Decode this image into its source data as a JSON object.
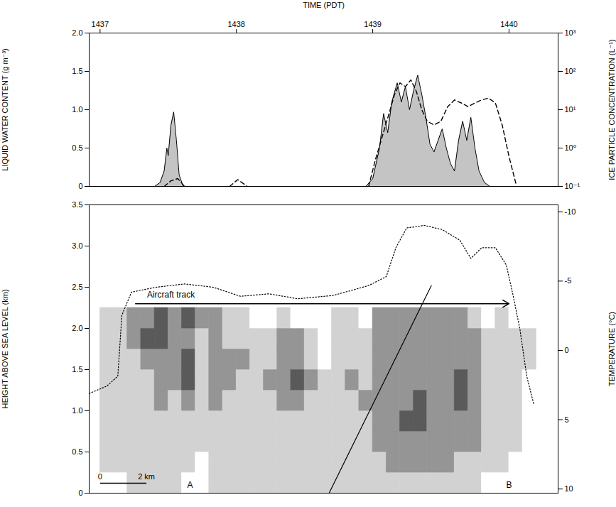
{
  "chart_data": [
    {
      "type": "area",
      "x_label": "TIME (PDT)",
      "y_label": "LIQUID WATER CONTENT (g m⁻³)",
      "y2_label": "ICE PARTICLE CONCENTRATION (L⁻¹)",
      "xlim": [
        1436.92,
        1440.36
      ],
      "xticks": [
        1437,
        1438,
        1439,
        1440
      ],
      "ylim": [
        0,
        2
      ],
      "yticks": [
        0,
        0.5,
        {
          "value": 1,
          "label": "1.0"
        },
        1.5,
        {
          "value": 2,
          "label": "2.0"
        }
      ],
      "y2lim": [
        0.1,
        1000
      ],
      "y2ticks": [
        {
          "value": 0.1,
          "label": "10⁻¹"
        },
        {
          "value": 1,
          "label": "10⁰"
        },
        {
          "value": 10,
          "label": "10¹"
        },
        {
          "value": 100,
          "label": "10²"
        },
        {
          "value": 1000,
          "label": "10³"
        }
      ],
      "series": [
        {
          "type": "area",
          "color": "#c4c4c4",
          "x": [
            1436.92,
            1437.4,
            1437.44,
            1437.47,
            1437.49,
            1437.5,
            1437.52,
            1437.54,
            1437.56,
            1437.58,
            1437.61,
            1438.95,
            1439.0,
            1439.05,
            1439.08,
            1439.11,
            1439.14,
            1439.18,
            1439.21,
            1439.24,
            1439.27,
            1439.3,
            1439.33,
            1439.36,
            1439.39,
            1439.42,
            1439.45,
            1439.48,
            1439.51,
            1439.54,
            1439.57,
            1439.6,
            1439.63,
            1439.66,
            1439.69,
            1439.72,
            1439.75,
            1439.78,
            1439.82,
            1439.86,
            1440.36
          ],
          "values": [
            0,
            0,
            0.05,
            0.2,
            0.5,
            0.4,
            0.8,
            0.97,
            0.6,
            0.15,
            0,
            0,
            0.1,
            0.5,
            0.95,
            0.7,
            1.1,
            1.35,
            1.1,
            1.3,
            1.0,
            1.25,
            1.45,
            1.2,
            0.9,
            0.55,
            0.45,
            0.6,
            0.75,
            0.5,
            0.3,
            0.2,
            0.6,
            0.85,
            0.6,
            0.9,
            0.5,
            0.2,
            0.05,
            0,
            0
          ]
        },
        {
          "type": "line",
          "axis": "y2",
          "log": true,
          "line_style": "dashed",
          "color": "#000000",
          "x": [
            1437.47,
            1437.52,
            1437.57,
            1437.62,
            1437.8,
            1437.95,
            1438.01,
            1438.08,
            1438.5,
            1438.97,
            1439.02,
            1439.07,
            1439.12,
            1439.16,
            1439.2,
            1439.24,
            1439.28,
            1439.32,
            1439.36,
            1439.4,
            1439.45,
            1439.5,
            1439.55,
            1439.6,
            1439.65,
            1439.7,
            1439.75,
            1439.8,
            1439.85,
            1439.9,
            1439.95,
            1440.0,
            1440.05
          ],
          "values": [
            0.1,
            0.14,
            0.16,
            0.1,
            null,
            0.1,
            0.15,
            0.1,
            null,
            0.1,
            0.5,
            2,
            8,
            25,
            50,
            40,
            60,
            30,
            10,
            5,
            4,
            5,
            12,
            18,
            15,
            12,
            15,
            18,
            20,
            15,
            4,
            0.6,
            0.12
          ]
        }
      ]
    },
    {
      "type": "heatmap",
      "y_label": "HEIGHT ABOVE SEA LEVEL (km)",
      "y2_label": "TEMPERATURE (°C)",
      "tick_labels": "y",
      "xlim": [
        1436.92,
        1440.36
      ],
      "ylim": [
        0,
        3.5
      ],
      "yticks": [
        0,
        0.5,
        {
          "value": 1,
          "label": "1.0"
        },
        1.5,
        {
          "value": 2,
          "label": "2.0"
        },
        2.5,
        {
          "value": 3,
          "label": "3.0"
        },
        3.5
      ],
      "y2lim": [
        10.3,
        -10.5
      ],
      "y2ticks": [
        -10,
        -5,
        0,
        5,
        10
      ],
      "x_bins": [
        1437.0,
        1437.1,
        1437.2,
        1437.3,
        1437.4,
        1437.5,
        1437.6,
        1437.7,
        1437.8,
        1437.9,
        1438.0,
        1438.1,
        1438.2,
        1438.3,
        1438.4,
        1438.5,
        1438.6,
        1438.7,
        1438.8,
        1438.9,
        1439.0,
        1439.1,
        1439.2,
        1439.3,
        1439.4,
        1439.5,
        1439.6,
        1439.7,
        1439.8,
        1439.9,
        1440.0,
        1440.1,
        1440.2
      ],
      "y_bins": [
        0,
        0.25,
        0.5,
        0.75,
        1.0,
        1.25,
        1.5,
        1.75,
        2.0,
        2.25
      ],
      "colors": [
        "#ffffff",
        "#d2d2d2",
        "#959595",
        "#5a5a5a"
      ],
      "cells": [
        [
          0,
          1,
          1,
          1,
          1,
          1,
          1,
          1,
          1
        ],
        [
          0,
          1,
          1,
          1,
          1,
          1,
          1,
          1,
          1
        ],
        [
          1,
          1,
          1,
          1,
          1,
          1,
          1,
          2,
          2
        ],
        [
          1,
          1,
          1,
          1,
          1,
          1,
          2,
          3,
          2
        ],
        [
          1,
          1,
          1,
          1,
          2,
          2,
          2,
          3,
          3
        ],
        [
          1,
          1,
          1,
          1,
          1,
          2,
          2,
          2,
          2
        ],
        [
          0,
          1,
          1,
          1,
          2,
          3,
          3,
          2,
          3
        ],
        [
          0,
          0,
          1,
          1,
          1,
          1,
          1,
          1,
          2
        ],
        [
          1,
          1,
          1,
          1,
          2,
          2,
          2,
          2,
          2
        ],
        [
          1,
          1,
          1,
          1,
          1,
          2,
          2,
          1,
          1
        ],
        [
          1,
          1,
          1,
          1,
          1,
          1,
          2,
          1,
          1
        ],
        [
          1,
          1,
          1,
          1,
          1,
          1,
          1,
          1,
          0
        ],
        [
          1,
          1,
          1,
          1,
          1,
          2,
          1,
          1,
          0
        ],
        [
          1,
          1,
          1,
          1,
          2,
          2,
          2,
          2,
          1
        ],
        [
          1,
          1,
          1,
          1,
          2,
          3,
          2,
          2,
          0
        ],
        [
          1,
          1,
          1,
          1,
          1,
          2,
          1,
          1,
          0
        ],
        [
          1,
          1,
          1,
          1,
          1,
          1,
          0,
          0,
          0
        ],
        [
          1,
          1,
          1,
          1,
          1,
          1,
          1,
          1,
          1
        ],
        [
          1,
          1,
          1,
          1,
          1,
          2,
          1,
          1,
          1
        ],
        [
          1,
          1,
          1,
          1,
          2,
          1,
          1,
          1,
          0
        ],
        [
          1,
          1,
          2,
          2,
          2,
          2,
          2,
          2,
          2
        ],
        [
          1,
          2,
          2,
          2,
          2,
          2,
          2,
          2,
          2
        ],
        [
          1,
          2,
          2,
          3,
          2,
          2,
          2,
          2,
          2
        ],
        [
          1,
          2,
          2,
          3,
          3,
          2,
          2,
          2,
          2
        ],
        [
          1,
          2,
          2,
          2,
          2,
          2,
          2,
          2,
          2
        ],
        [
          1,
          2,
          2,
          2,
          2,
          2,
          2,
          2,
          2
        ],
        [
          1,
          1,
          2,
          2,
          3,
          3,
          2,
          2,
          2
        ],
        [
          1,
          1,
          2,
          2,
          2,
          2,
          2,
          2,
          1
        ],
        [
          0,
          1,
          1,
          1,
          1,
          1,
          1,
          1,
          0
        ],
        [
          0,
          1,
          1,
          1,
          1,
          1,
          1,
          1,
          1
        ],
        [
          0,
          0,
          1,
          1,
          1,
          1,
          1,
          1,
          0
        ],
        [
          0,
          0,
          0,
          0,
          0,
          0,
          1,
          1,
          0
        ]
      ],
      "lines": [
        {
          "line_style": "dotted",
          "color": "#000000",
          "x": [
            1436.92,
            1437.05,
            1437.13,
            1437.16,
            1437.23,
            1437.41,
            1437.62,
            1437.83,
            1438.03,
            1438.24,
            1438.45,
            1438.71,
            1438.97,
            1439.1,
            1439.17,
            1439.25,
            1439.38,
            1439.51,
            1439.64,
            1439.72,
            1439.8,
            1439.9,
            1439.98,
            1440.03,
            1440.08,
            1440.13,
            1440.18
          ],
          "values": [
            1.21,
            1.3,
            1.42,
            2.16,
            2.44,
            2.5,
            2.54,
            2.5,
            2.39,
            2.42,
            2.36,
            2.4,
            2.52,
            2.63,
            2.98,
            3.22,
            3.25,
            3.2,
            3.07,
            2.85,
            2.98,
            2.98,
            2.77,
            2.4,
            1.99,
            1.42,
            1.09
          ]
        },
        {
          "line_style": "solid",
          "color": "#000000",
          "x": [
            1438.68,
            1439.43
          ],
          "values": [
            0,
            2.52
          ]
        }
      ],
      "arrow": {
        "x": [
          1437.26,
          1440.0
        ],
        "y": 2.3
      },
      "annotations": [
        {
          "text": "Aircraft track",
          "x": 1437.52,
          "y": 2.41
        },
        {
          "text": "A",
          "x": 1437.66,
          "y": 0.1
        },
        {
          "text": "B",
          "x": 1440.0,
          "y": 0.1
        }
      ],
      "scale_bar": {
        "x": [
          1437.0,
          1437.34
        ],
        "y": 0.12,
        "labels": [
          "0",
          "2 km"
        ]
      }
    }
  ]
}
